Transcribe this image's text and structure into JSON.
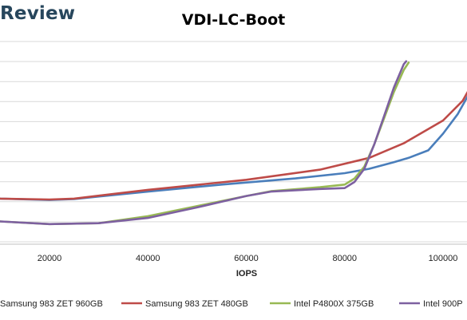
{
  "brand": {
    "text": "Review",
    "color": "#27465c"
  },
  "chart_data": {
    "type": "line",
    "title": "VDI-LC-Boot",
    "xlabel": "IOPS",
    "ylabel": "",
    "xlim": [
      0,
      105000
    ],
    "x_ticks": [
      20000,
      40000,
      60000,
      80000,
      100000
    ],
    "grid": "horizontal",
    "legend_position": "bottom",
    "series": [
      {
        "name": "Samsung 983 ZET 960GB",
        "color": "#4a7ebb",
        "points": [
          [
            0,
            0.75
          ],
          [
            10000,
            0.62
          ],
          [
            20000,
            0.59
          ],
          [
            25000,
            0.61
          ],
          [
            40000,
            0.78
          ],
          [
            55000,
            0.94
          ],
          [
            70000,
            1.08
          ],
          [
            80000,
            1.2
          ],
          [
            85000,
            1.3
          ],
          [
            90000,
            1.45
          ],
          [
            93000,
            1.55
          ],
          [
            97000,
            1.72
          ],
          [
            100000,
            2.1
          ],
          [
            103000,
            2.55
          ],
          [
            105000,
            2.95
          ]
        ]
      },
      {
        "name": "Samsung 983 ZET 480GB",
        "color": "#be4b48",
        "points": [
          [
            0,
            0.75
          ],
          [
            10000,
            0.62
          ],
          [
            20000,
            0.6
          ],
          [
            25000,
            0.62
          ],
          [
            40000,
            0.82
          ],
          [
            60000,
            1.05
          ],
          [
            75000,
            1.28
          ],
          [
            85000,
            1.55
          ],
          [
            92000,
            1.88
          ],
          [
            100000,
            2.4
          ],
          [
            104000,
            2.85
          ],
          [
            105000,
            3.05
          ]
        ]
      },
      {
        "name": "Intel P4800X 375GB",
        "color": "#98b954",
        "points": [
          [
            0,
            0.15
          ],
          [
            10000,
            0.1
          ],
          [
            20000,
            0.04
          ],
          [
            30000,
            0.06
          ],
          [
            40000,
            0.22
          ],
          [
            50000,
            0.45
          ],
          [
            60000,
            0.68
          ],
          [
            65000,
            0.79
          ],
          [
            75000,
            0.88
          ],
          [
            80000,
            0.94
          ],
          [
            82000,
            1.08
          ],
          [
            84000,
            1.35
          ],
          [
            86000,
            1.85
          ],
          [
            88000,
            2.45
          ],
          [
            90000,
            3.05
          ],
          [
            92000,
            3.55
          ],
          [
            93000,
            3.72
          ]
        ]
      },
      {
        "name": "Intel 900P",
        "color": "#7d60a0",
        "points": [
          [
            0,
            0.15
          ],
          [
            10000,
            0.1
          ],
          [
            20000,
            0.04
          ],
          [
            30000,
            0.06
          ],
          [
            40000,
            0.18
          ],
          [
            50000,
            0.42
          ],
          [
            60000,
            0.68
          ],
          [
            65000,
            0.78
          ],
          [
            75000,
            0.84
          ],
          [
            80000,
            0.86
          ],
          [
            82000,
            1.0
          ],
          [
            84000,
            1.3
          ],
          [
            86000,
            1.85
          ],
          [
            88000,
            2.5
          ],
          [
            90000,
            3.15
          ],
          [
            92000,
            3.68
          ],
          [
            92500,
            3.75
          ]
        ]
      }
    ]
  }
}
